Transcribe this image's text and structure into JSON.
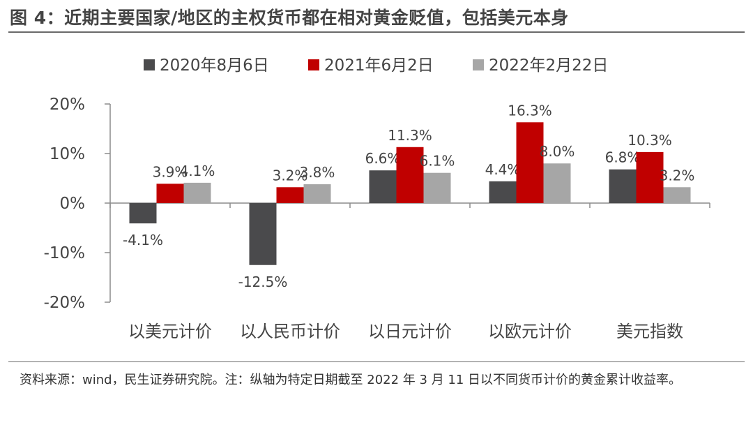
{
  "figure": {
    "title": "图 4：近期主要国家/地区的主权货币都在相对黄金贬值，包括美元本身",
    "source_note": "资料来源：wind，民生证券研究院。注：纵轴为特定日期截至 2022 年 3 月 11 日以不同货币计价的黄金累计收益率。"
  },
  "chart_data": {
    "type": "bar",
    "categories": [
      "以美元计价",
      "以人民币计价",
      "以日元计价",
      "以欧元计价",
      "美元指数"
    ],
    "series": [
      {
        "name": "2020年8月6日",
        "values": [
          -4.1,
          -12.5,
          6.6,
          4.4,
          6.8
        ],
        "labels": [
          "-4.1%",
          "-12.5%",
          "6.6%",
          "4.4%",
          "6.8%"
        ],
        "color": "#4a4a4c"
      },
      {
        "name": "2021年6月2日",
        "values": [
          3.9,
          3.2,
          11.3,
          16.3,
          10.3
        ],
        "labels": [
          "3.9%",
          "3.2%",
          "11.3%",
          "16.3%",
          "10.3%"
        ],
        "color": "#c00000"
      },
      {
        "name": "2022年2月22日",
        "values": [
          4.1,
          3.8,
          6.1,
          8.0,
          3.2
        ],
        "labels": [
          "4.1%",
          "3.8%",
          "6.1%",
          "8.0%",
          "3.2%"
        ],
        "color": "#a6a6a6"
      }
    ],
    "ylim": [
      -20,
      20
    ],
    "yticks": [
      20,
      10,
      0,
      -10,
      -20
    ],
    "ytick_labels": [
      "20%",
      "10%",
      "0%",
      "-10%",
      "-20%"
    ],
    "legend_position": "top-center",
    "grid": false
  }
}
